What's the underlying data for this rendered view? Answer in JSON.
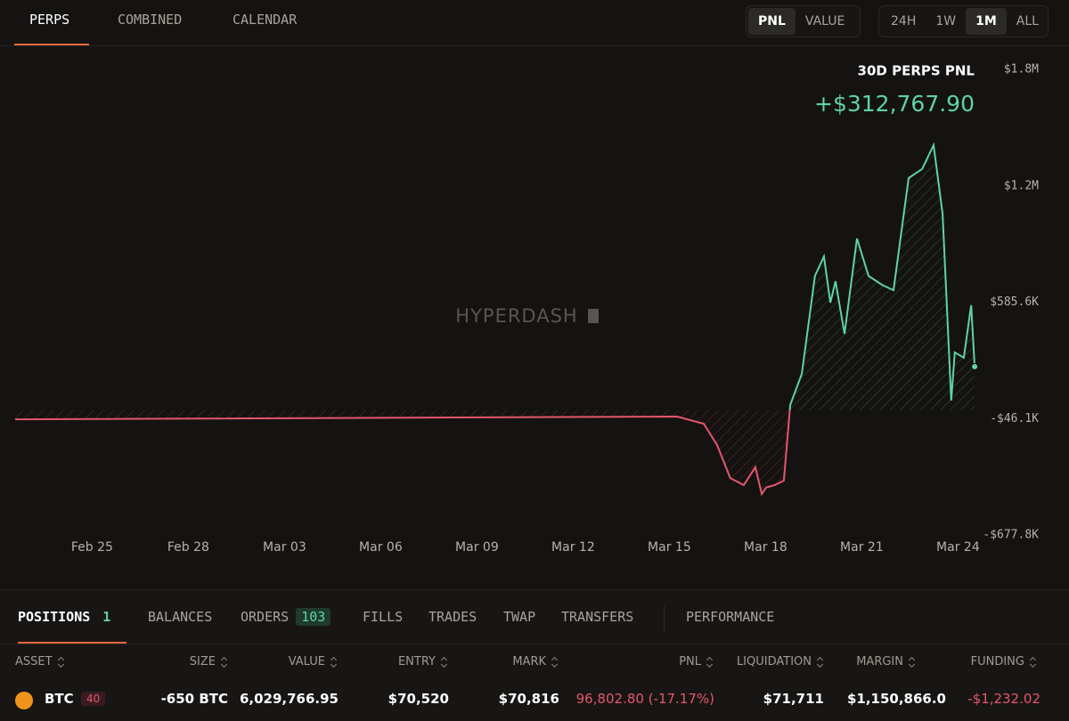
{
  "tabs": [
    "PERPS",
    "COMBINED",
    "CALENDAR"
  ],
  "metric_toggle": [
    "PNL",
    "VALUE"
  ],
  "range_toggle": [
    "24H",
    "1W",
    "1M",
    "ALL"
  ],
  "chart_data": {
    "type": "line",
    "title": "30D PERPS PNL",
    "subtitle": "+$312,767.90",
    "watermark": "HYPERDASH",
    "x": [
      0.6,
      21.24,
      22.07,
      22.49,
      22.9,
      23.32,
      23.68,
      23.88,
      24.02,
      24.29,
      24.57,
      24.77,
      25.13,
      25.54,
      25.82,
      26.02,
      26.18,
      26.46,
      26.85,
      27.21,
      27.63,
      27.99,
      28.46,
      28.88,
      29.24,
      29.52,
      29.79,
      29.9,
      30.18,
      30.41,
      30.52
    ],
    "series": [
      {
        "color": "#5fd3a3",
        "negative_color": "#e3566d",
        "values": [
          -50000,
          -35000,
          -74000,
          -190000,
          -369000,
          -407000,
          -310000,
          -455000,
          -420000,
          -407000,
          -383000,
          28000,
          197000,
          728000,
          834000,
          583000,
          699000,
          414000,
          931000,
          728000,
          680000,
          651000,
          1260000,
          1308000,
          1438000,
          1066000,
          52000,
          313000,
          284000,
          569000,
          236000
        ]
      }
    ],
    "xlim": [
      0.6,
      30.6
    ],
    "xticks": [
      {
        "value": 3,
        "label": "Feb 25"
      },
      {
        "value": 6,
        "label": "Feb 28"
      },
      {
        "value": 9,
        "label": "Mar 03"
      },
      {
        "value": 12,
        "label": "Mar 06"
      },
      {
        "value": 15,
        "label": "Mar 09"
      },
      {
        "value": 18,
        "label": "Mar 12"
      },
      {
        "value": 21,
        "label": "Mar 15"
      },
      {
        "value": 24,
        "label": "Mar 18"
      },
      {
        "value": 27,
        "label": "Mar 21"
      },
      {
        "value": 30,
        "label": "Mar 24"
      }
    ],
    "ylim": [
      -677800,
      1849000
    ],
    "yticks": [
      {
        "value": -677800,
        "label": "-$677.8K"
      },
      {
        "value": -46100,
        "label": "-$46.1K"
      },
      {
        "value": 585600,
        "label": "$585.6K"
      },
      {
        "value": 1217300,
        "label": "$1.2M"
      },
      {
        "value": 1849000,
        "label": "$1.8M"
      }
    ]
  },
  "bottom_tabs": [
    {
      "label": "POSITIONS",
      "count": "1"
    },
    {
      "label": "BALANCES"
    },
    {
      "label": "ORDERS",
      "count": "103"
    },
    {
      "label": "FILLS"
    },
    {
      "label": "TRADES"
    },
    {
      "label": "TWAP"
    },
    {
      "label": "TRANSFERS"
    },
    {
      "label": "PERFORMANCE"
    }
  ],
  "table": {
    "headers": [
      "ASSET",
      "SIZE",
      "VALUE",
      "ENTRY",
      "MARK",
      "PNL",
      "LIQUIDATION",
      "MARGIN",
      "FUNDING"
    ],
    "rows": [
      {
        "asset": "BTC",
        "leverage": "40",
        "cells": [
          "-650 BTC",
          "6,029,766.95",
          "$70,520",
          "$70,816",
          "96,802.80 (-17.17%)",
          "$71,711",
          "$1,150,866.0",
          "-$1,232.02"
        ]
      }
    ]
  }
}
